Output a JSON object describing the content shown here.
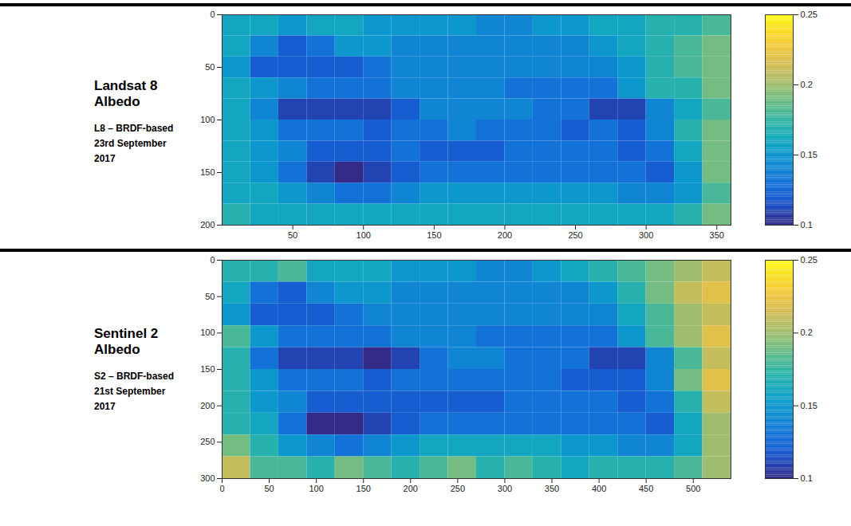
{
  "chart_data": [
    {
      "type": "heatmap",
      "title": "Landsat 8 Albedo",
      "subtitle": [
        "L8 – BRDF-based",
        "23rd September 2017"
      ],
      "xlim": [
        0,
        360
      ],
      "ylim": [
        0,
        200
      ],
      "xticks": [
        50,
        100,
        150,
        200,
        250,
        300,
        350
      ],
      "yticks": [
        0,
        50,
        100,
        150,
        200
      ],
      "x_bins": [
        0,
        20,
        40,
        60,
        80,
        100,
        120,
        140,
        160,
        180,
        200,
        220,
        240,
        260,
        280,
        300,
        320,
        340,
        360
      ],
      "y_bins": [
        0,
        20,
        40,
        60,
        80,
        100,
        120,
        140,
        160,
        180,
        200
      ],
      "cells": [
        [
          0.16,
          0.16,
          0.15,
          0.16,
          0.16,
          0.15,
          0.15,
          0.15,
          0.15,
          0.14,
          0.14,
          0.15,
          0.15,
          0.16,
          0.16,
          0.17,
          0.17,
          0.18
        ],
        [
          0.16,
          0.14,
          0.12,
          0.13,
          0.15,
          0.15,
          0.14,
          0.14,
          0.14,
          0.14,
          0.14,
          0.14,
          0.14,
          0.15,
          0.16,
          0.17,
          0.18,
          0.19
        ],
        [
          0.15,
          0.12,
          0.12,
          0.12,
          0.12,
          0.13,
          0.14,
          0.14,
          0.14,
          0.14,
          0.14,
          0.14,
          0.14,
          0.14,
          0.15,
          0.17,
          0.18,
          0.19
        ],
        [
          0.16,
          0.15,
          0.14,
          0.13,
          0.13,
          0.13,
          0.14,
          0.14,
          0.14,
          0.14,
          0.13,
          0.13,
          0.13,
          0.13,
          0.15,
          0.17,
          0.17,
          0.19
        ],
        [
          0.16,
          0.14,
          0.11,
          0.11,
          0.11,
          0.11,
          0.12,
          0.14,
          0.14,
          0.14,
          0.14,
          0.13,
          0.13,
          0.11,
          0.11,
          0.14,
          0.16,
          0.18
        ],
        [
          0.16,
          0.15,
          0.13,
          0.13,
          0.13,
          0.12,
          0.13,
          0.13,
          0.14,
          0.13,
          0.13,
          0.13,
          0.12,
          0.13,
          0.12,
          0.14,
          0.17,
          0.19
        ],
        [
          0.16,
          0.15,
          0.14,
          0.12,
          0.12,
          0.12,
          0.13,
          0.12,
          0.12,
          0.12,
          0.13,
          0.13,
          0.13,
          0.13,
          0.12,
          0.13,
          0.16,
          0.19
        ],
        [
          0.16,
          0.15,
          0.13,
          0.11,
          0.1,
          0.11,
          0.12,
          0.13,
          0.13,
          0.13,
          0.13,
          0.13,
          0.13,
          0.13,
          0.13,
          0.12,
          0.15,
          0.19
        ],
        [
          0.16,
          0.16,
          0.15,
          0.14,
          0.13,
          0.13,
          0.14,
          0.15,
          0.15,
          0.15,
          0.15,
          0.15,
          0.15,
          0.15,
          0.14,
          0.14,
          0.15,
          0.18
        ],
        [
          0.17,
          0.16,
          0.16,
          0.16,
          0.16,
          0.16,
          0.16,
          0.16,
          0.16,
          0.16,
          0.16,
          0.16,
          0.16,
          0.16,
          0.16,
          0.16,
          0.17,
          0.19
        ]
      ],
      "colorbar": {
        "range": [
          0.1,
          0.25
        ],
        "ticks": [
          0.1,
          0.15,
          0.2,
          0.25
        ]
      }
    },
    {
      "type": "heatmap",
      "title": "Sentinel 2 Albedo",
      "subtitle": [
        "S2 – BRDF-based",
        "21st September 2017"
      ],
      "xlim": [
        0,
        540
      ],
      "ylim": [
        0,
        300
      ],
      "xticks": [
        0,
        50,
        100,
        150,
        200,
        250,
        300,
        350,
        400,
        450,
        500
      ],
      "yticks": [
        0,
        50,
        100,
        150,
        200,
        250,
        300
      ],
      "x_bins": [
        0,
        30,
        60,
        90,
        120,
        150,
        180,
        210,
        240,
        270,
        300,
        330,
        360,
        390,
        420,
        450,
        480,
        510,
        540
      ],
      "y_bins": [
        0,
        30,
        60,
        90,
        120,
        150,
        180,
        210,
        240,
        270,
        300
      ],
      "cells": [
        [
          0.17,
          0.17,
          0.18,
          0.16,
          0.16,
          0.16,
          0.15,
          0.15,
          0.15,
          0.14,
          0.14,
          0.15,
          0.16,
          0.17,
          0.18,
          0.19,
          0.2,
          0.21
        ],
        [
          0.16,
          0.13,
          0.12,
          0.14,
          0.15,
          0.15,
          0.14,
          0.14,
          0.14,
          0.14,
          0.14,
          0.14,
          0.14,
          0.15,
          0.17,
          0.19,
          0.21,
          0.22
        ],
        [
          0.15,
          0.12,
          0.12,
          0.12,
          0.13,
          0.14,
          0.14,
          0.14,
          0.14,
          0.14,
          0.14,
          0.14,
          0.14,
          0.14,
          0.16,
          0.18,
          0.2,
          0.21
        ],
        [
          0.18,
          0.15,
          0.13,
          0.13,
          0.13,
          0.13,
          0.14,
          0.14,
          0.14,
          0.13,
          0.13,
          0.13,
          0.13,
          0.13,
          0.15,
          0.18,
          0.2,
          0.22
        ],
        [
          0.17,
          0.13,
          0.11,
          0.11,
          0.11,
          0.1,
          0.11,
          0.13,
          0.14,
          0.14,
          0.13,
          0.13,
          0.13,
          0.11,
          0.11,
          0.14,
          0.18,
          0.21
        ],
        [
          0.17,
          0.15,
          0.13,
          0.13,
          0.13,
          0.12,
          0.13,
          0.13,
          0.13,
          0.13,
          0.13,
          0.13,
          0.12,
          0.12,
          0.12,
          0.14,
          0.19,
          0.22
        ],
        [
          0.17,
          0.15,
          0.14,
          0.12,
          0.12,
          0.12,
          0.12,
          0.12,
          0.12,
          0.12,
          0.13,
          0.13,
          0.13,
          0.13,
          0.12,
          0.13,
          0.17,
          0.21
        ],
        [
          0.17,
          0.16,
          0.13,
          0.1,
          0.1,
          0.11,
          0.12,
          0.13,
          0.13,
          0.13,
          0.13,
          0.13,
          0.13,
          0.13,
          0.13,
          0.12,
          0.16,
          0.2
        ],
        [
          0.19,
          0.17,
          0.15,
          0.14,
          0.13,
          0.14,
          0.15,
          0.16,
          0.16,
          0.16,
          0.16,
          0.16,
          0.15,
          0.15,
          0.14,
          0.14,
          0.16,
          0.2
        ],
        [
          0.21,
          0.18,
          0.18,
          0.17,
          0.19,
          0.18,
          0.17,
          0.18,
          0.19,
          0.17,
          0.18,
          0.17,
          0.16,
          0.17,
          0.17,
          0.17,
          0.18,
          0.2
        ]
      ],
      "colorbar": {
        "range": [
          0.1,
          0.25
        ],
        "ticks": [
          0.1,
          0.15,
          0.2,
          0.25
        ]
      }
    }
  ]
}
